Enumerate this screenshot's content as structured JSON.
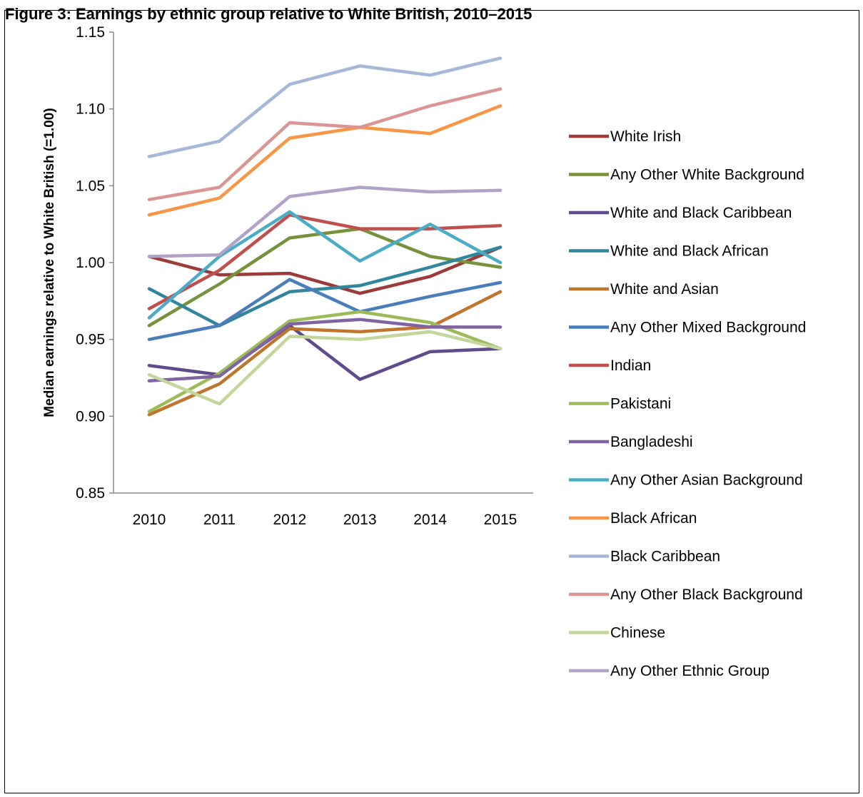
{
  "title": "Figure 3: Earnings by ethnic group relative to White British, 2010–2015",
  "chart_data": {
    "type": "line",
    "title": "Figure 3: Earnings by ethnic group relative to White British, 2010–2015",
    "xlabel": "",
    "ylabel": "Median earnings relative to White British (=1.00)",
    "x": [
      "2010",
      "2011",
      "2012",
      "2013",
      "2014",
      "2015"
    ],
    "ylim": [
      0.85,
      1.15
    ],
    "yticks": [
      "0.85",
      "0.90",
      "0.95",
      "1.00",
      "1.05",
      "1.10",
      "1.15"
    ],
    "grid": false,
    "legend_position": "right",
    "series": [
      {
        "name": "White Irish",
        "color": "#9b3b3b",
        "values": [
          1.004,
          0.992,
          0.993,
          0.98,
          0.991,
          1.01
        ]
      },
      {
        "name": "Any Other White Background",
        "color": "#76923c",
        "values": [
          0.959,
          0.986,
          1.016,
          1.022,
          1.004,
          0.997
        ]
      },
      {
        "name": "White and Black Caribbean",
        "color": "#5f4b8b",
        "values": [
          0.933,
          0.927,
          0.959,
          0.924,
          0.942,
          0.944
        ]
      },
      {
        "name": "White and Black African",
        "color": "#31859c",
        "values": [
          0.983,
          0.959,
          0.981,
          0.985,
          0.997,
          1.01
        ]
      },
      {
        "name": "White and Asian",
        "color": "#c0752e",
        "values": [
          0.901,
          0.921,
          0.957,
          0.955,
          0.958,
          0.981
        ]
      },
      {
        "name": "Any Other Mixed Background",
        "color": "#4a7ebb",
        "values": [
          0.95,
          0.959,
          0.989,
          0.968,
          0.978,
          0.987
        ]
      },
      {
        "name": "Indian",
        "color": "#c0504d",
        "values": [
          0.97,
          0.995,
          1.031,
          1.022,
          1.022,
          1.024
        ]
      },
      {
        "name": "Pakistani",
        "color": "#9bbb59",
        "values": [
          0.903,
          0.928,
          0.962,
          0.968,
          0.961,
          0.944
        ]
      },
      {
        "name": "Bangladeshi",
        "color": "#8064a2",
        "values": [
          0.923,
          0.926,
          0.96,
          0.963,
          0.958,
          0.958
        ]
      },
      {
        "name": "Any Other Asian Background",
        "color": "#4bacc6",
        "values": [
          0.964,
          1.004,
          1.033,
          1.001,
          1.025,
          1.0
        ]
      },
      {
        "name": "Black African",
        "color": "#f79646",
        "values": [
          1.031,
          1.042,
          1.081,
          1.088,
          1.084,
          1.102
        ]
      },
      {
        "name": "Black Caribbean",
        "color": "#a5b8d8",
        "values": [
          1.069,
          1.079,
          1.116,
          1.128,
          1.122,
          1.133
        ]
      },
      {
        "name": "Any Other Black Background",
        "color": "#d99694",
        "values": [
          1.041,
          1.049,
          1.091,
          1.088,
          1.102,
          1.113
        ]
      },
      {
        "name": "Chinese",
        "color": "#c3d69b",
        "values": [
          0.927,
          0.908,
          0.952,
          0.95,
          0.955,
          0.944
        ]
      },
      {
        "name": "Any Other Ethnic Group",
        "color": "#b3a2c7",
        "values": [
          1.004,
          1.005,
          1.043,
          1.049,
          1.046,
          1.047
        ]
      }
    ]
  }
}
